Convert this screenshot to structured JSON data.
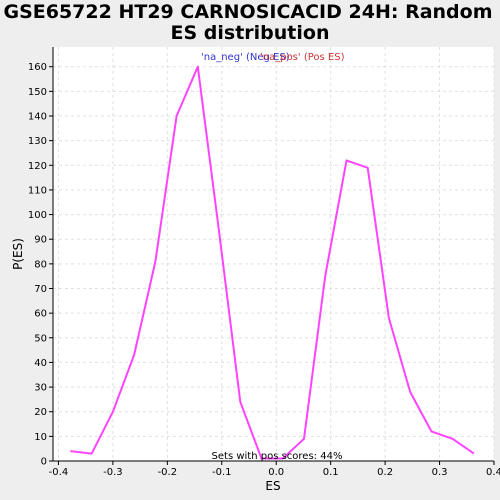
{
  "chart_data": {
    "type": "line",
    "title_line1": "GSE65722 HT29 CARNOSICACID 24H: Random",
    "title_line2": "ES distribution",
    "xlabel": "ES",
    "ylabel": "P(ES)",
    "xlim": [
      -0.41,
      0.4
    ],
    "ylim": [
      0,
      168
    ],
    "x_ticks": [
      -0.4,
      -0.3,
      -0.2,
      -0.1,
      0,
      0.1,
      0.2,
      0.3,
      0.4
    ],
    "x_tick_labels": [
      "-0.4",
      "-0.3",
      "-0.2",
      "-0.1",
      "0.0",
      "0.1",
      "0.2",
      "0.3",
      "0.4"
    ],
    "y_ticks": [
      0,
      10,
      20,
      30,
      40,
      50,
      60,
      70,
      80,
      90,
      100,
      110,
      120,
      130,
      140,
      150,
      160
    ],
    "y_tick_labels": [
      "0",
      "10",
      "20",
      "30",
      "40",
      "50",
      "60",
      "70",
      "80",
      "90",
      "100",
      "110",
      "120",
      "130",
      "140",
      "150",
      "160"
    ],
    "grid": true,
    "series": [
      {
        "color": "#ff44ff",
        "x": [
          -0.378,
          -0.339,
          -0.3,
          -0.261,
          -0.222,
          -0.183,
          -0.144,
          -0.105,
          -0.066,
          -0.027,
          0.012,
          0.051,
          0.09,
          0.129,
          0.168,
          0.207,
          0.246,
          0.285,
          0.324,
          0.363
        ],
        "y": [
          4,
          3,
          20,
          43,
          81,
          140,
          160,
          93,
          24,
          1,
          1,
          9,
          75,
          122,
          119,
          58,
          28,
          12,
          9,
          3
        ]
      }
    ],
    "legend": [
      {
        "label": "'na_neg' (Neg ES)",
        "color": "#3333cc"
      },
      {
        "label": "'na_pos' (Pos ES)",
        "color": "#cc3333"
      }
    ],
    "legend_position": "top-center",
    "annotation": "Sets with pos scores: 44%"
  }
}
